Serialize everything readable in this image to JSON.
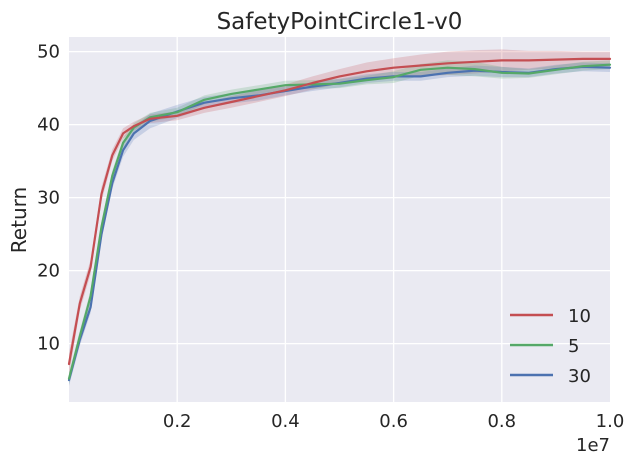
{
  "chart_data": {
    "type": "line",
    "title": "SafetyPointCircle1-v0",
    "xlabel": "",
    "ylabel": "Return",
    "x_offset_label": "1e7",
    "xlim": [
      0,
      1.0
    ],
    "ylim": [
      2,
      52
    ],
    "xticks": [
      0.2,
      0.4,
      0.6,
      0.8,
      1.0
    ],
    "xtick_labels": [
      "0.2",
      "0.4",
      "0.6",
      "0.8",
      "1.0"
    ],
    "yticks": [
      10,
      20,
      30,
      40,
      50
    ],
    "ytick_labels": [
      "10",
      "20",
      "30",
      "40",
      "50"
    ],
    "grid": true,
    "legend_position": "lower-right",
    "background_color": "#eaeaf2",
    "series": [
      {
        "name": "10",
        "color": "#c44e52",
        "x": [
          0,
          0.02,
          0.04,
          0.06,
          0.08,
          0.1,
          0.12,
          0.15,
          0.2,
          0.25,
          0.3,
          0.35,
          0.4,
          0.45,
          0.5,
          0.55,
          0.6,
          0.65,
          0.7,
          0.75,
          0.8,
          0.85,
          0.9,
          0.95,
          1.0
        ],
        "y": [
          7.2,
          15.5,
          20.5,
          30.5,
          35.8,
          38.8,
          39.8,
          40.8,
          41.2,
          42.3,
          43.1,
          43.9,
          44.7,
          45.7,
          46.6,
          47.3,
          47.8,
          48.1,
          48.4,
          48.6,
          48.8,
          48.8,
          48.9,
          49.0,
          49.0
        ],
        "band": [
          1.5,
          1.0,
          1.0,
          1.0,
          0.8,
          0.7,
          0.6,
          0.6,
          0.6,
          0.7,
          0.8,
          0.8,
          0.8,
          0.9,
          1.0,
          1.2,
          1.3,
          1.5,
          1.6,
          1.6,
          1.5,
          1.3,
          1.2,
          1.0,
          1.0
        ]
      },
      {
        "name": "5",
        "color": "#55a868",
        "x": [
          0,
          0.02,
          0.04,
          0.06,
          0.08,
          0.1,
          0.12,
          0.15,
          0.2,
          0.25,
          0.3,
          0.35,
          0.4,
          0.45,
          0.5,
          0.55,
          0.6,
          0.65,
          0.7,
          0.75,
          0.8,
          0.85,
          0.9,
          0.95,
          1.0
        ],
        "y": [
          5.2,
          11.0,
          16.5,
          26.0,
          33.0,
          37.5,
          39.6,
          41.0,
          41.7,
          43.4,
          44.2,
          44.8,
          45.4,
          45.5,
          45.6,
          46.1,
          46.5,
          47.5,
          47.8,
          47.6,
          47.1,
          47.0,
          47.5,
          48.0,
          48.2
        ],
        "band": [
          0.8,
          0.8,
          0.8,
          0.8,
          0.7,
          0.7,
          0.6,
          0.6,
          0.6,
          0.6,
          0.6,
          0.6,
          0.6,
          0.6,
          0.6,
          0.6,
          0.8,
          0.8,
          1.0,
          1.0,
          0.8,
          0.6,
          0.6,
          0.6,
          0.6
        ]
      },
      {
        "name": "30",
        "color": "#4c72b0",
        "x": [
          0,
          0.02,
          0.04,
          0.06,
          0.08,
          0.1,
          0.12,
          0.15,
          0.2,
          0.25,
          0.3,
          0.35,
          0.4,
          0.45,
          0.5,
          0.55,
          0.6,
          0.65,
          0.7,
          0.75,
          0.8,
          0.85,
          0.9,
          0.95,
          1.0
        ],
        "y": [
          5.0,
          10.5,
          15.0,
          25.0,
          32.0,
          36.5,
          38.8,
          40.5,
          41.8,
          43.0,
          43.6,
          44.0,
          44.6,
          45.2,
          45.7,
          46.3,
          46.6,
          46.6,
          47.1,
          47.4,
          47.2,
          47.1,
          47.6,
          47.9,
          47.8
        ],
        "band": [
          0.8,
          0.8,
          0.8,
          0.8,
          0.8,
          0.9,
          0.9,
          1.0,
          0.9,
          0.8,
          0.7,
          0.7,
          0.6,
          0.6,
          0.6,
          0.6,
          0.6,
          0.6,
          0.6,
          0.7,
          0.7,
          0.6,
          0.6,
          0.6,
          0.6
        ]
      }
    ]
  }
}
